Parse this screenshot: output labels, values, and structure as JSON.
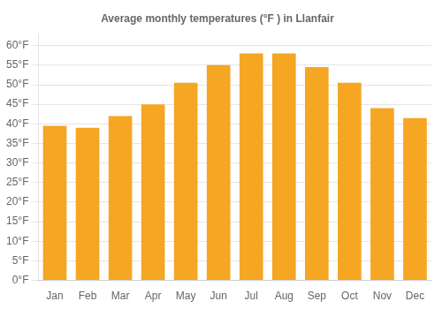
{
  "chart_data": {
    "type": "bar",
    "title": "Average monthly temperatures (°F ) in Llanfair",
    "categories": [
      "Jan",
      "Feb",
      "Mar",
      "Apr",
      "May",
      "Jun",
      "Jul",
      "Aug",
      "Sep",
      "Oct",
      "Nov",
      "Dec"
    ],
    "values": [
      39.5,
      39.0,
      42.0,
      45.0,
      50.5,
      55.0,
      58.0,
      58.0,
      54.5,
      50.5,
      44.0,
      41.5
    ],
    "color": "#F5A623",
    "ylim": [
      0,
      63
    ],
    "yticks": [
      {
        "value": 0,
        "label": "0°F"
      },
      {
        "value": 5,
        "label": "5°F"
      },
      {
        "value": 10,
        "label": "10°F"
      },
      {
        "value": 15,
        "label": "15°F"
      },
      {
        "value": 20,
        "label": "20°F"
      },
      {
        "value": 25,
        "label": "25°F"
      },
      {
        "value": 30,
        "label": "30°F"
      },
      {
        "value": 35,
        "label": "35°F"
      },
      {
        "value": 40,
        "label": "40°F"
      },
      {
        "value": 45,
        "label": "45°F"
      },
      {
        "value": 50,
        "label": "50°F"
      },
      {
        "value": 55,
        "label": "55°F"
      },
      {
        "value": 60,
        "label": "60°F"
      }
    ],
    "grid": true
  }
}
